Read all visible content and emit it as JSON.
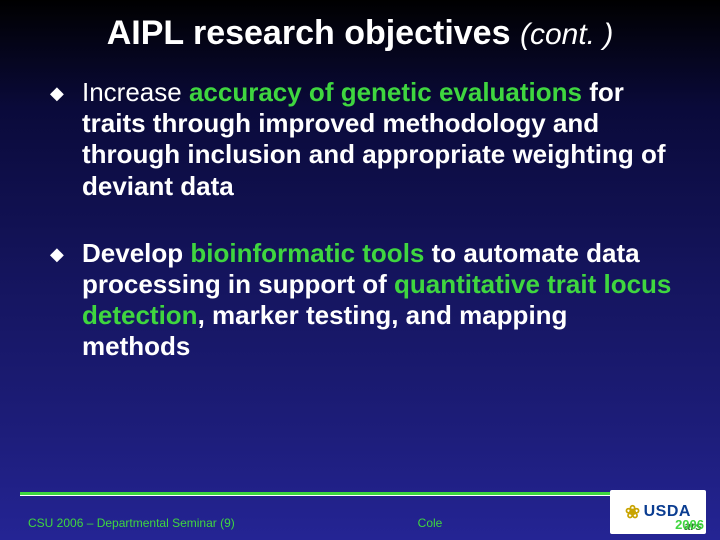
{
  "title": {
    "main": "AIPL research objectives",
    "cont": "(cont. )"
  },
  "bullets": [
    {
      "pre": "Increase ",
      "highlight": "accuracy of genetic evaluations",
      "post": " for traits through improved methodology and through inclusion and appropriate weighting of deviant data"
    },
    {
      "pre": "Develop ",
      "highlight": "bioinformatic tools",
      "mid": " to automate data processing in support of ",
      "highlight2": "quantitative trait locus detection",
      "post": ", marker testing, and mapping methods"
    }
  ],
  "footer": {
    "left": "CSU 2006 – Departmental Seminar (9)",
    "center": "Cole",
    "year": "2006",
    "logo_text": "USDA",
    "logo_sub": "ars"
  },
  "colors": {
    "green": "#3fd63f",
    "text": "#ffffff",
    "bg_top": "#000000",
    "bg_bottom": "#242494",
    "logo_blue": "#0b3d91"
  }
}
